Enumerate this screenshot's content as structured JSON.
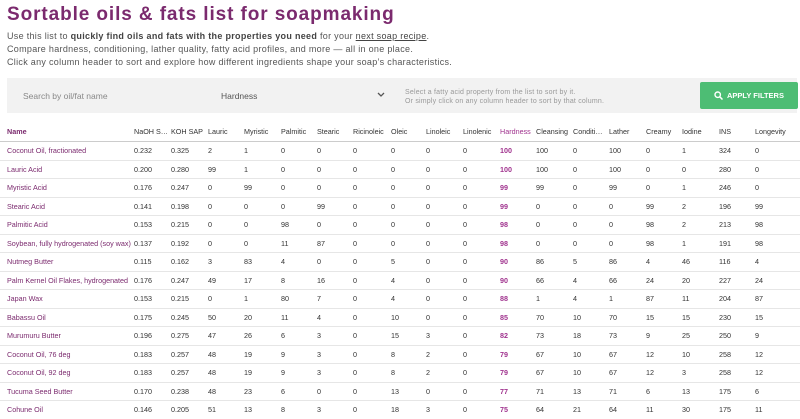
{
  "header": {
    "title": "Sortable oils & fats list for soapmaking",
    "intro": [
      [
        "Use this list to ",
        "quickly find oils and fats with the properties you need",
        " for your ",
        "next soap recipe",
        "."
      ],
      [
        "Compare hardness, conditioning, lather quality, fatty acid profiles, and more — all in one place."
      ],
      [
        "Click any column header to sort and explore how different ingredients shape your soap’s characteristics."
      ]
    ]
  },
  "filters": {
    "search_placeholder": "Search by oil/fat name",
    "sort_select": "Hardness",
    "hint": [
      "Select a fatty acid property from the list to sort by it.",
      "Or simply click on any column header to sort by that column."
    ],
    "button": "APPLY FILTERS"
  },
  "table": {
    "columns": [
      "Name",
      "NaOH SAP",
      "KOH SAP",
      "Lauric",
      "Myristic",
      "Palmitic",
      "Stearic",
      "Ricinoleic",
      "Oleic",
      "Linoleic",
      "Linolenic",
      "Hardness",
      "Cleansing",
      "Condition…",
      "Lather",
      "Creamy",
      "Iodine",
      "INS",
      "Longevity"
    ],
    "rows": [
      [
        "Coconut Oil, fractionated",
        "0.232",
        "0.325",
        2,
        1,
        0,
        0,
        0,
        0,
        0,
        0,
        100,
        100,
        0,
        100,
        0,
        1,
        324,
        0
      ],
      [
        "Lauric Acid",
        "0.200",
        "0.280",
        99,
        1,
        0,
        0,
        0,
        0,
        0,
        0,
        100,
        100,
        0,
        100,
        0,
        0,
        280,
        0
      ],
      [
        "Myristic Acid",
        "0.176",
        "0.247",
        0,
        99,
        0,
        0,
        0,
        0,
        0,
        0,
        99,
        99,
        0,
        99,
        0,
        1,
        246,
        0
      ],
      [
        "Stearic Acid",
        "0.141",
        "0.198",
        0,
        0,
        0,
        99,
        0,
        0,
        0,
        0,
        99,
        0,
        0,
        0,
        99,
        2,
        196,
        99
      ],
      [
        "Palmitic Acid",
        "0.153",
        "0.215",
        0,
        0,
        98,
        0,
        0,
        0,
        0,
        0,
        98,
        0,
        0,
        0,
        98,
        2,
        213,
        98
      ],
      [
        "Soybean, fully hydrogenated (soy wax)",
        "0.137",
        "0.192",
        0,
        0,
        11,
        87,
        0,
        0,
        0,
        0,
        98,
        0,
        0,
        0,
        98,
        1,
        191,
        98
      ],
      [
        "Nutmeg Butter",
        "0.115",
        "0.162",
        3,
        83,
        4,
        0,
        0,
        5,
        0,
        0,
        90,
        86,
        5,
        86,
        4,
        46,
        116,
        4
      ],
      [
        "Palm Kernel Oil Flakes, hydrogenated",
        "0.176",
        "0.247",
        49,
        17,
        8,
        16,
        0,
        4,
        0,
        0,
        90,
        66,
        4,
        66,
        24,
        20,
        227,
        24
      ],
      [
        "Japan Wax",
        "0.153",
        "0.215",
        0,
        1,
        80,
        7,
        0,
        4,
        0,
        0,
        88,
        1,
        4,
        1,
        87,
        11,
        204,
        87
      ],
      [
        "Babassu Oil",
        "0.175",
        "0.245",
        50,
        20,
        11,
        4,
        0,
        10,
        0,
        0,
        85,
        70,
        10,
        70,
        15,
        15,
        230,
        15
      ],
      [
        "Murumuru Butter",
        "0.196",
        "0.275",
        47,
        26,
        6,
        3,
        0,
        15,
        3,
        0,
        82,
        73,
        18,
        73,
        9,
        25,
        250,
        9
      ],
      [
        "Coconut Oil, 76 deg",
        "0.183",
        "0.257",
        48,
        19,
        9,
        3,
        0,
        8,
        2,
        0,
        79,
        67,
        10,
        67,
        12,
        10,
        258,
        12
      ],
      [
        "Coconut Oil, 92 deg",
        "0.183",
        "0.257",
        48,
        19,
        9,
        3,
        0,
        8,
        2,
        0,
        79,
        67,
        10,
        67,
        12,
        3,
        258,
        12
      ],
      [
        "Tucuma Seed Butter",
        "0.170",
        "0.238",
        48,
        23,
        6,
        0,
        0,
        13,
        0,
        0,
        77,
        71,
        13,
        71,
        6,
        13,
        175,
        6
      ],
      [
        "Cohune Oil",
        "0.146",
        "0.205",
        51,
        13,
        8,
        3,
        0,
        18,
        3,
        0,
        75,
        64,
        21,
        64,
        11,
        30,
        175,
        11
      ]
    ]
  }
}
